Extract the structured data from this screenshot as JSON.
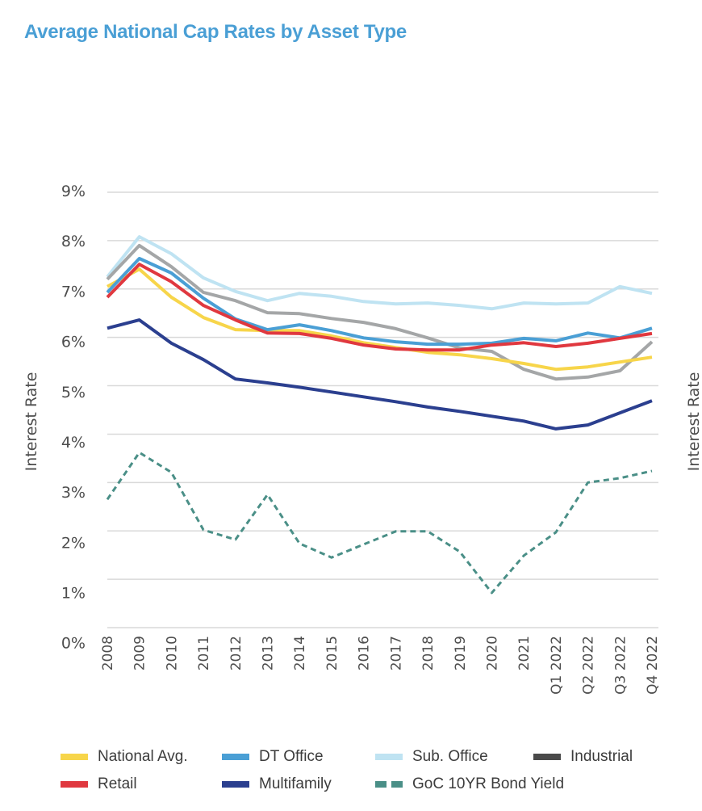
{
  "title": "Average National Cap Rates by Asset Type",
  "chart_data": {
    "type": "line",
    "title": "Average National Cap Rates by Asset Type",
    "xlabel": "",
    "ylabel": "Interest Rate",
    "ylabel_right": "Interest Rate",
    "ylim": [
      0,
      9
    ],
    "yticks": [
      0,
      1,
      2,
      3,
      4,
      5,
      6,
      7,
      8,
      9
    ],
    "ytick_labels": [
      "0%",
      "1%",
      "2%",
      "3%",
      "4%",
      "5%",
      "6%",
      "7%",
      "8%",
      "9%"
    ],
    "grid": true,
    "legend_position": "bottom",
    "x": [
      "2008",
      "2009",
      "2010",
      "2011",
      "2012",
      "2013",
      "2014",
      "2015",
      "2016",
      "2017",
      "2018",
      "2019",
      "2020",
      "2021",
      "Q1 2022",
      "Q2 2022",
      "Q3 2022",
      "Q4 2022"
    ],
    "series": [
      {
        "name": "National Avg.",
        "color": "#f7d54a",
        "style": "solid",
        "values": [
          7.05,
          7.41,
          6.83,
          6.41,
          6.16,
          6.14,
          6.14,
          6.03,
          5.89,
          5.79,
          5.69,
          5.64,
          5.56,
          5.46,
          5.34,
          5.39,
          5.49,
          5.59
        ]
      },
      {
        "name": "DT Office",
        "color": "#4a9fd5",
        "style": "solid",
        "values": [
          6.93,
          7.63,
          7.33,
          6.81,
          6.38,
          6.16,
          6.26,
          6.14,
          5.99,
          5.91,
          5.86,
          5.86,
          5.88,
          5.98,
          5.93,
          6.09,
          5.99,
          6.19
        ]
      },
      {
        "name": "Sub. Office",
        "color": "#bfe3f2",
        "style": "solid",
        "values": [
          7.25,
          8.08,
          7.73,
          7.23,
          6.95,
          6.76,
          6.91,
          6.85,
          6.74,
          6.69,
          6.71,
          6.66,
          6.59,
          6.71,
          6.69,
          6.71,
          7.05,
          6.91
        ]
      },
      {
        "name": "Industrial",
        "color": "#a4a6a7",
        "legend_color": "#4a4a4a",
        "style": "solid",
        "values": [
          7.2,
          7.9,
          7.46,
          6.93,
          6.76,
          6.51,
          6.49,
          6.39,
          6.31,
          6.18,
          5.99,
          5.78,
          5.71,
          5.34,
          5.14,
          5.18,
          5.31,
          5.91
        ]
      },
      {
        "name": "Retail",
        "color": "#e0383f",
        "style": "solid",
        "values": [
          6.83,
          7.51,
          7.15,
          6.66,
          6.36,
          6.09,
          6.08,
          5.98,
          5.84,
          5.76,
          5.74,
          5.74,
          5.84,
          5.89,
          5.81,
          5.88,
          5.98,
          6.08
        ]
      },
      {
        "name": "Multifamily",
        "color": "#2b3f8f",
        "style": "solid",
        "values": [
          6.19,
          6.36,
          5.88,
          5.54,
          5.14,
          5.06,
          4.97,
          4.87,
          4.77,
          4.67,
          4.56,
          4.47,
          4.37,
          4.27,
          4.11,
          4.19,
          4.44,
          4.69
        ]
      },
      {
        "name": "GoC 10YR Bond Yield",
        "color": "#4a8f87",
        "style": "dashed",
        "values": [
          2.65,
          3.62,
          3.21,
          2.02,
          1.82,
          2.75,
          1.74,
          1.45,
          1.72,
          1.99,
          1.99,
          1.57,
          0.72,
          1.49,
          1.97,
          3.0,
          3.09,
          3.24
        ]
      }
    ]
  },
  "legend": {
    "items": [
      {
        "label": "National Avg.",
        "color": "#f7d54a",
        "style": "solid"
      },
      {
        "label": "DT Office",
        "color": "#4a9fd5",
        "style": "solid"
      },
      {
        "label": "Sub. Office",
        "color": "#bfe3f2",
        "style": "solid"
      },
      {
        "label": "Industrial",
        "color": "#4a4a4a",
        "style": "solid"
      },
      {
        "label": "Retail",
        "color": "#e0383f",
        "style": "solid"
      },
      {
        "label": "Multifamily",
        "color": "#2b3f8f",
        "style": "solid"
      },
      {
        "label": "GoC 10YR Bond Yield",
        "color": "#4a8f87",
        "style": "dashed"
      }
    ]
  }
}
